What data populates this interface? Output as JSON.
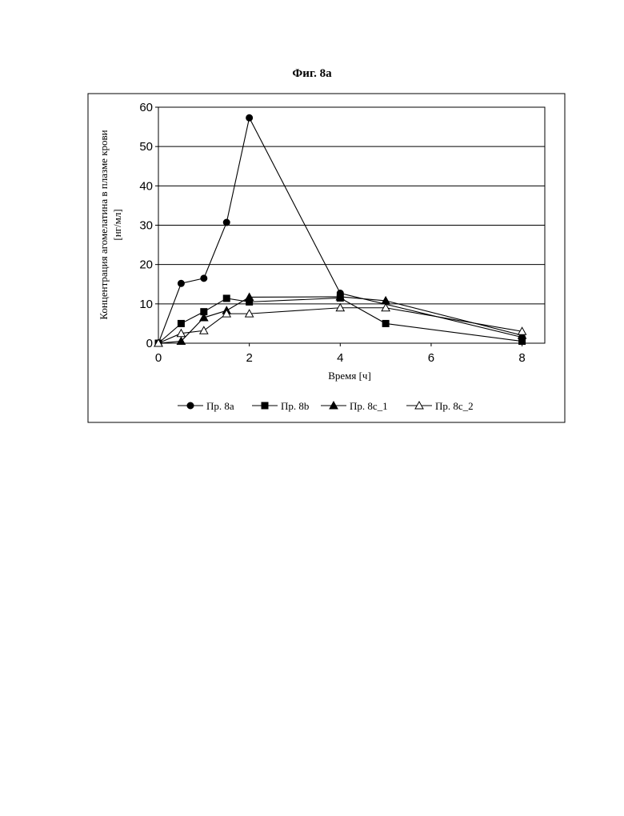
{
  "figure_title": "Фиг. 8а",
  "chart_data": {
    "type": "line",
    "title": "",
    "xlabel": "Время [ч]",
    "ylabel_line1": "Концентрация агомелатина в плазме крови",
    "ylabel_line2": "[нг/мл]",
    "xlim": [
      0,
      8.5
    ],
    "ylim": [
      0,
      60
    ],
    "xticks": [
      0,
      2,
      4,
      6,
      8
    ],
    "yticks": [
      0,
      10,
      20,
      30,
      40,
      50,
      60
    ],
    "grid": "horizontal",
    "legend_position": "bottom",
    "series": [
      {
        "name": "Пр. 8a",
        "marker": "circle-filled",
        "x": [
          0,
          0.5,
          1,
          1.5,
          2,
          4,
          8
        ],
        "y": [
          0,
          15.2,
          16.5,
          30.7,
          57.3,
          12.7,
          1.5
        ]
      },
      {
        "name": "Пр. 8b",
        "marker": "square-filled",
        "x": [
          0,
          0.5,
          1,
          1.5,
          2,
          4,
          5,
          8
        ],
        "y": [
          0,
          5,
          8,
          11.4,
          10.5,
          11.5,
          5,
          0.5
        ]
      },
      {
        "name": "Пр. 8c_1",
        "marker": "triangle-filled",
        "x": [
          0,
          0.5,
          1,
          1.5,
          2,
          4,
          5,
          8
        ],
        "y": [
          0,
          0.5,
          6.5,
          8.3,
          11.7,
          11.8,
          10.8,
          2
        ]
      },
      {
        "name": "Пр. 8c_2",
        "marker": "triangle-open",
        "x": [
          0,
          0.5,
          1,
          1.5,
          2,
          4,
          5,
          8
        ],
        "y": [
          0,
          2.5,
          3.2,
          7.5,
          7.5,
          9,
          9,
          3
        ]
      }
    ]
  }
}
